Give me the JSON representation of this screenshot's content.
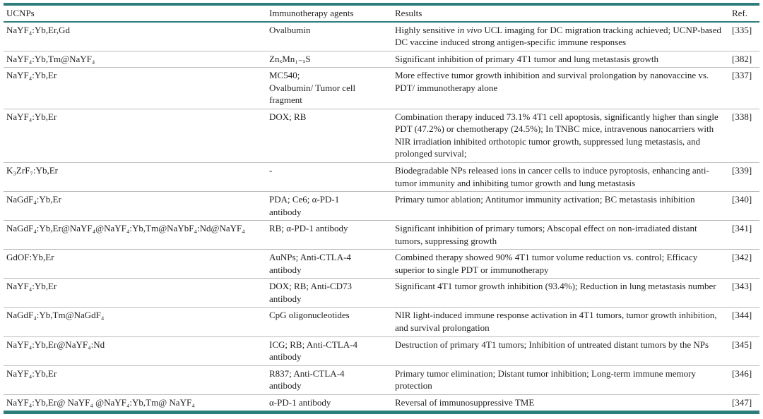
{
  "table": {
    "columns": [
      "UCNPs",
      "Immunotherapy agents",
      "Results",
      "Ref."
    ],
    "rows": [
      {
        "ucnp": "NaYF₄:Yb,Er,Gd",
        "agents": "Ovalbumin",
        "results": "Highly sensitive *in vivo* UCL imaging for DC migration tracking achieved; UCNP-based DC vaccine induced strong antigen-specific immune responses",
        "ref": "[335]"
      },
      {
        "ucnp": "NaYF₄:Yb,Tm@NaYF₄",
        "agents": "ZnₓMn₁₋ₓS",
        "results": "Significant inhibition of primary 4T1 tumor and lung metastasis growth",
        "ref": "[382]"
      },
      {
        "ucnp": "NaYF₄:Yb,Er",
        "agents": "MC540;\nOvalbumin/ Tumor cell fragment",
        "results": "More effective tumor growth inhibition and survival prolongation by nanovaccine vs. PDT/ immunotherapy alone",
        "ref": "[337]"
      },
      {
        "ucnp": "NaYF₄:Yb,Er",
        "agents": "DOX; RB",
        "results": "Combination therapy induced 73.1% 4T1 cell apoptosis, significantly higher than single PDT (47.2%) or chemotherapy (24.5%); In TNBC mice, intravenous nanocarriers with NIR irradiation inhibited orthotopic tumor growth, suppressed lung metastasis, and prolonged survival;",
        "ref": "[338]"
      },
      {
        "ucnp": "K₃ZrF₇:Yb,Er",
        "agents": "-",
        "results": "Biodegradable NPs released ions in cancer cells to induce pyroptosis, enhancing anti-tumor immunity and inhibiting tumor growth and lung metastasis",
        "ref": "[339]"
      },
      {
        "ucnp": "NaGdF₄:Yb,Er",
        "agents": "PDA; Ce6; α-PD-1 antibody",
        "results": "Primary tumor ablation; Antitumor immunity activation; BC metastasis inhibition",
        "ref": "[340]"
      },
      {
        "ucnp": "NaGdF₄:Yb,Er@NaYF₄@NaYF₄:Yb,Tm@NaYbF₄:Nd@NaYF₄",
        "agents": "RB; α-PD-1 antibody",
        "results": "Significant inhibition of primary tumors; Abscopal effect on non-irradiated distant tumors, suppressing growth",
        "ref": "[341]"
      },
      {
        "ucnp": "GdOF:Yb,Er",
        "agents": "AuNPs; Anti-CTLA-4 antibody",
        "results": "Combined therapy showed 90% 4T1 tumor volume reduction vs. control; Efficacy superior to single PDT or immunotherapy",
        "ref": "[342]"
      },
      {
        "ucnp": "NaYF₄:Yb,Er",
        "agents": "DOX; RB; Anti-CD73 antibody",
        "results": "Significant 4T1 tumor growth inhibition (93.4%); Reduction in lung metastasis number",
        "ref": "[343]"
      },
      {
        "ucnp": "NaGdF₄:Yb,Tm@NaGdF₄",
        "agents": "CpG oligonucleotides",
        "results": "NIR light-induced immune response activation in 4T1 tumors, tumor growth inhibition, and survival prolongation",
        "ref": "[344]"
      },
      {
        "ucnp": "NaYF₄:Yb,Er@NaYF₄:Nd",
        "agents": "ICG; RB; Anti-CTLA-4 antibody",
        "results": "Destruction of primary 4T1 tumors; Inhibition of untreated distant tumors by the NPs",
        "ref": "[345]"
      },
      {
        "ucnp": "NaYF₄:Yb,Er",
        "agents": "R837; Anti-CTLA-4 antibody",
        "results": "Primary tumor elimination; Distant tumor inhibition; Long-term immune memory protection",
        "ref": "[346]"
      },
      {
        "ucnp": "NaYF₄:Yb,Er@ NaYF₄ @NaYF₄:Yb,Tm@ NaYF₄",
        "agents": "α-PD-1 antibody",
        "results": "Reversal of immunosuppressive TME",
        "ref": "[347]"
      }
    ]
  },
  "colors": {
    "accent_teal": "#2e7d7d",
    "row_divider": "#bdbdbd",
    "text": "#1f1f1f",
    "background": "#ffffff"
  }
}
